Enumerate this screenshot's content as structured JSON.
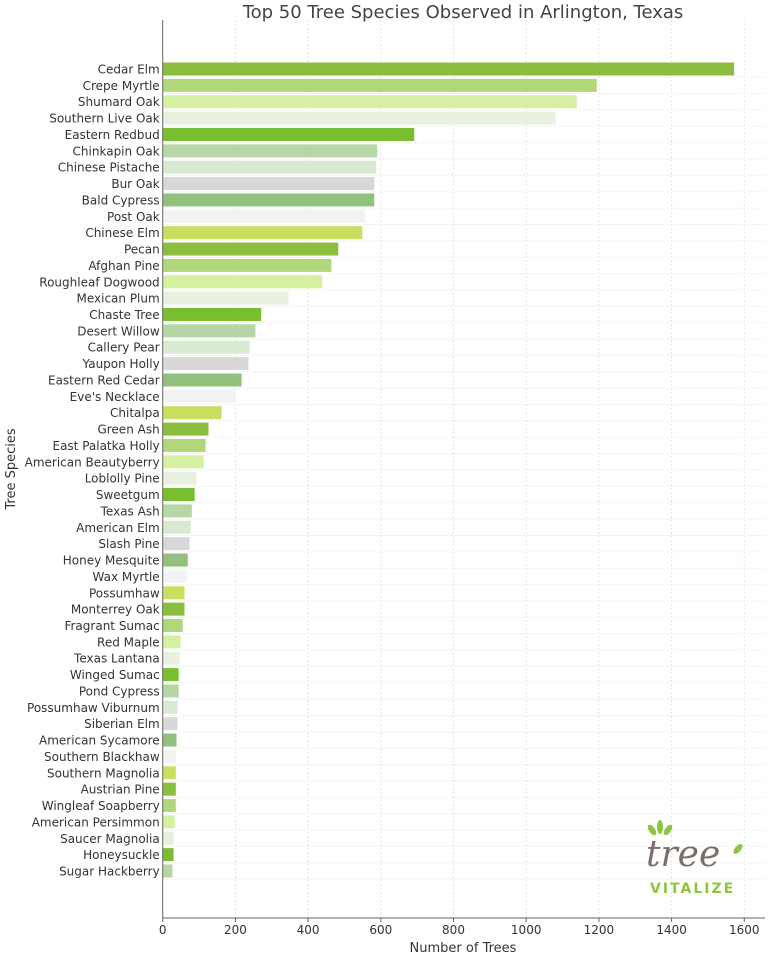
{
  "chart_data": {
    "type": "bar",
    "orientation": "horizontal",
    "title": "Top 50 Tree Species Observed in Arlington, Texas",
    "xlabel": "Number of Trees",
    "ylabel": "Tree Species",
    "xlim": [
      0,
      1650
    ],
    "xticks": [
      0,
      200,
      400,
      600,
      800,
      1000,
      1200,
      1400,
      1600
    ],
    "grid": true,
    "categories": [
      "Cedar Elm",
      "Crepe Myrtle",
      "Shumard Oak",
      "Southern Live Oak",
      "Eastern Redbud",
      "Chinkapin Oak",
      "Chinese Pistache",
      "Bur Oak",
      "Bald Cypress",
      "Post Oak",
      "Chinese Elm",
      "Pecan",
      "Afghan Pine",
      "Roughleaf Dogwood",
      "Mexican Plum",
      "Chaste Tree",
      "Desert Willow",
      "Callery Pear",
      "Yaupon Holly",
      "Eastern Red Cedar",
      "Eve's Necklace",
      "Chitalpa",
      "Green Ash",
      "East Palatka Holly",
      "American Beautyberry",
      "Loblolly Pine",
      "Sweetgum",
      "Texas Ash",
      "American Elm",
      "Slash Pine",
      "Honey Mesquite",
      "Wax Myrtle",
      "Possumhaw",
      "Monterrey Oak",
      "Fragrant Sumac",
      "Red Maple",
      "Texas Lantana",
      "Winged Sumac",
      "Pond Cypress",
      "Possumhaw Viburnum",
      "Siberian Elm",
      "American Sycamore",
      "Southern Blackhaw",
      "Southern Magnolia",
      "Austrian Pine",
      "Wingleaf Soapberry",
      "American Persimmon",
      "Saucer Magnolia",
      "Honeysuckle",
      "Sugar Hackberry"
    ],
    "values": [
      1572,
      1194,
      1139,
      1081,
      692,
      590,
      587,
      582,
      582,
      557,
      549,
      483,
      464,
      439,
      346,
      271,
      255,
      239,
      236,
      217,
      200,
      162,
      126,
      118,
      113,
      93,
      88,
      80,
      77,
      74,
      69,
      66,
      60,
      60,
      55,
      49,
      47,
      44,
      44,
      41,
      41,
      38,
      36,
      36,
      36,
      36,
      33,
      30,
      30,
      27
    ],
    "colors": [
      "#8bbd3e",
      "#b0d878",
      "#d4f0a0",
      "#e8f0e0",
      "#78be2e",
      "#b6d6a6",
      "#d8ead2",
      "#d8d8d8",
      "#92c17e",
      "#f2f2f2",
      "#c8df60"
    ]
  },
  "logo": {
    "word": "tree",
    "sub": "VITALIZE",
    "green": "#8cc63f",
    "gray": "#7a6e6a"
  }
}
